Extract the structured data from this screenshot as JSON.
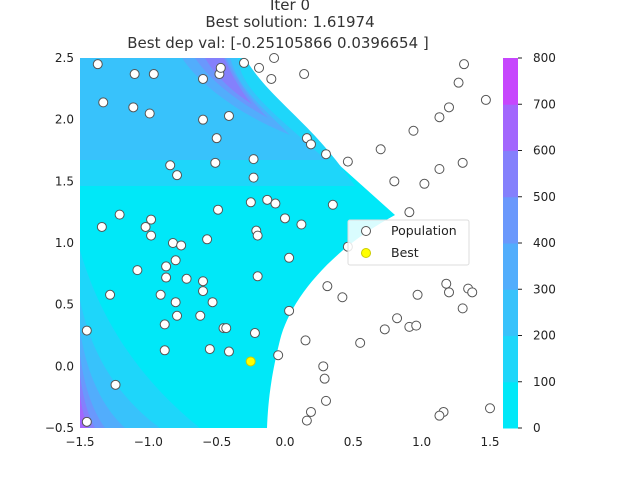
{
  "chart_data": {
    "type": "scatter",
    "title_lines": [
      "Iter 0",
      "Best solution: 1.61974",
      "Best dep val: [-0.25105866  0.0396654 ]"
    ],
    "xlabel": "",
    "ylabel": "",
    "xlim": [
      -1.5,
      1.5
    ],
    "ylim": [
      -0.5,
      2.5
    ],
    "x_ticks": [
      "−1.5",
      "−1.0",
      "−0.5",
      "0.0",
      "0.5",
      "1.0",
      "1.5"
    ],
    "y_ticks": [
      "−0.5",
      "0.0",
      "0.5",
      "1.0",
      "1.5",
      "2.0",
      "2.5"
    ],
    "grid": false,
    "colorbar": {
      "ticks": [
        "0",
        "100",
        "200",
        "300",
        "400",
        "500",
        "600",
        "700",
        "800"
      ],
      "levels": [
        0,
        100,
        200,
        300,
        400,
        500,
        600,
        700,
        800
      ],
      "colors": [
        "#00e8f8",
        "#1ed6fa",
        "#38c2fb",
        "#52adfc",
        "#6a98fc",
        "#8480fc",
        "#a266fd",
        "#c646fd",
        "#ec1ffe"
      ]
    },
    "legend": {
      "placement": "center-right",
      "entries": [
        {
          "label": "Population",
          "marker": "hollow-circle",
          "color": "#ffffff"
        },
        {
          "label": "Best",
          "marker": "filled-circle",
          "color": "#ffff00"
        }
      ]
    },
    "series": [
      {
        "name": "Population",
        "color": "#ffffff",
        "edge": "#555555",
        "x": [
          -1.37,
          -1.1,
          -0.96,
          -0.6,
          -0.48,
          -0.47,
          -0.3,
          -0.19,
          -0.1,
          -0.08,
          0.14,
          -1.33,
          -1.11,
          -0.99,
          -0.6,
          -0.41,
          0.16,
          0.3,
          0.7,
          0.94,
          1.13,
          1.2,
          1.27,
          1.31,
          1.47,
          -0.84,
          -0.79,
          -0.51,
          -0.5,
          -0.23,
          0.19,
          0.46,
          0.8,
          1.02,
          1.13,
          1.3,
          -0.23,
          -0.13,
          -1.21,
          -0.98,
          -0.49,
          -0.25,
          -0.07,
          0.35,
          0.91,
          -1.34,
          -0.98,
          -1.02,
          -0.82,
          -0.76,
          -0.21,
          -0.57,
          0.0,
          -0.2,
          0.12,
          0.46,
          0.03,
          -1.08,
          -0.72,
          -0.6,
          -0.87,
          -0.8,
          -0.87,
          -0.6,
          -0.2,
          -1.28,
          -0.91,
          -0.8,
          -0.53,
          0.03,
          0.31,
          0.42,
          0.82,
          0.97,
          1.2,
          1.34,
          1.37,
          1.18,
          -0.79,
          -0.45,
          -0.43,
          -0.88,
          -0.62,
          -0.22,
          0.15,
          0.55,
          0.73,
          0.91,
          0.96,
          1.3,
          -1.45,
          -0.88,
          -0.41,
          -0.55,
          -0.05,
          0.28,
          0.29,
          -1.24,
          0.3,
          0.19,
          0.16,
          1.16,
          1.13,
          1.5,
          -1.45
        ],
        "y": [
          2.45,
          2.37,
          2.37,
          2.33,
          2.37,
          2.42,
          2.46,
          2.42,
          2.33,
          2.5,
          2.37,
          2.14,
          2.1,
          2.05,
          2.0,
          2.03,
          1.85,
          1.72,
          1.76,
          1.91,
          2.02,
          2.1,
          2.3,
          2.45,
          2.16,
          1.63,
          1.55,
          1.65,
          1.85,
          1.68,
          1.8,
          1.66,
          1.5,
          1.48,
          1.6,
          1.65,
          1.53,
          1.35,
          1.23,
          1.19,
          1.27,
          1.33,
          1.32,
          1.31,
          1.25,
          1.13,
          1.06,
          1.13,
          1.0,
          0.98,
          1.1,
          1.03,
          1.2,
          1.06,
          1.15,
          0.97,
          0.88,
          0.78,
          0.71,
          0.69,
          0.72,
          0.86,
          0.81,
          0.61,
          0.73,
          0.58,
          0.58,
          0.52,
          0.52,
          0.45,
          0.65,
          0.56,
          0.39,
          0.58,
          0.6,
          0.63,
          0.6,
          0.67,
          0.41,
          0.31,
          0.31,
          0.34,
          0.41,
          0.27,
          0.21,
          0.19,
          0.3,
          0.32,
          0.33,
          0.47,
          0.29,
          0.13,
          0.12,
          0.14,
          0.09,
          0.0,
          -0.1,
          -0.15,
          -0.28,
          -0.37,
          -0.44,
          -0.37,
          -0.4,
          -0.34,
          -0.45
        ]
      },
      {
        "name": "Best",
        "color": "#ffff00",
        "edge": "#cccc00",
        "x": [
          -0.25105866
        ],
        "y": [
          0.0396654
        ]
      }
    ]
  }
}
